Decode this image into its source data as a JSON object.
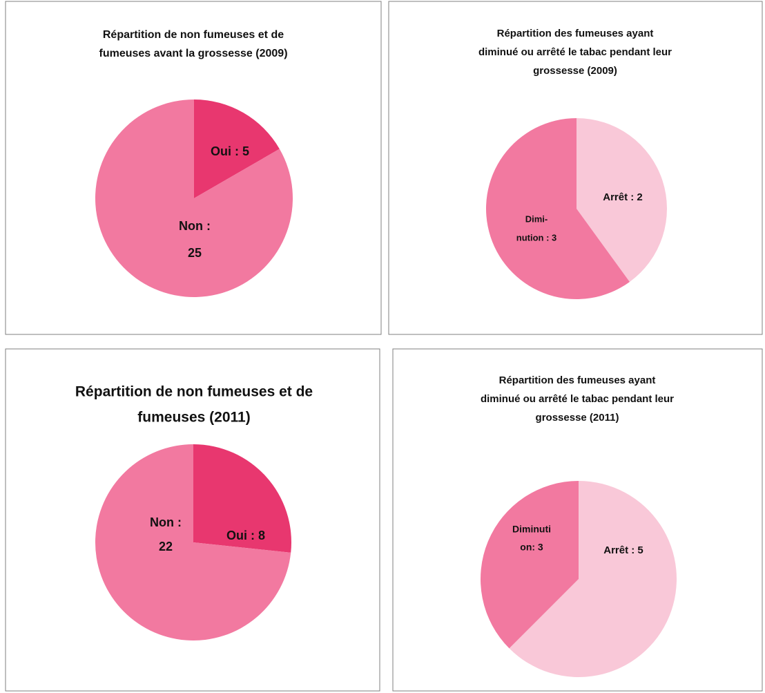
{
  "chart_data": [
    {
      "type": "pie",
      "title": [
        "Répartition de non fumeuses et de",
        "fumeuses avant la grossesse (2009)"
      ],
      "values": [
        5,
        25
      ],
      "value_labels": [
        [
          "Oui : 5"
        ],
        [
          "Non :",
          "25"
        ]
      ],
      "colors": [
        "#e8376f",
        "#f279a0"
      ]
    },
    {
      "type": "pie",
      "title": [
        "Répartition  des fumeuses ayant",
        "diminué ou arrêté le tabac pendant leur",
        "grossesse (2009)"
      ],
      "values": [
        2,
        3
      ],
      "value_labels": [
        [
          "Arrêt : 2"
        ],
        [
          "Dimi-",
          "nution :  3"
        ]
      ],
      "colors": [
        "#f9c8d8",
        "#f279a0"
      ]
    },
    {
      "type": "pie",
      "title": [
        "Répartition de non fumeuses et de",
        "fumeuses (2011)"
      ],
      "values": [
        8,
        22
      ],
      "value_labels": [
        [
          "Oui : 8"
        ],
        [
          "Non :",
          "22"
        ]
      ],
      "colors": [
        "#e8376f",
        "#f279a0"
      ]
    },
    {
      "type": "pie",
      "title": [
        "Répartition  des fumeuses ayant",
        "diminué ou arrêté le tabac pendant leur",
        "grossesse (2011)"
      ],
      "values": [
        5,
        3
      ],
      "value_labels": [
        [
          "Arrêt : 5"
        ],
        [
          "Diminuti",
          "on:  3"
        ]
      ],
      "colors": [
        "#f9c8d8",
        "#f279a0"
      ]
    }
  ]
}
